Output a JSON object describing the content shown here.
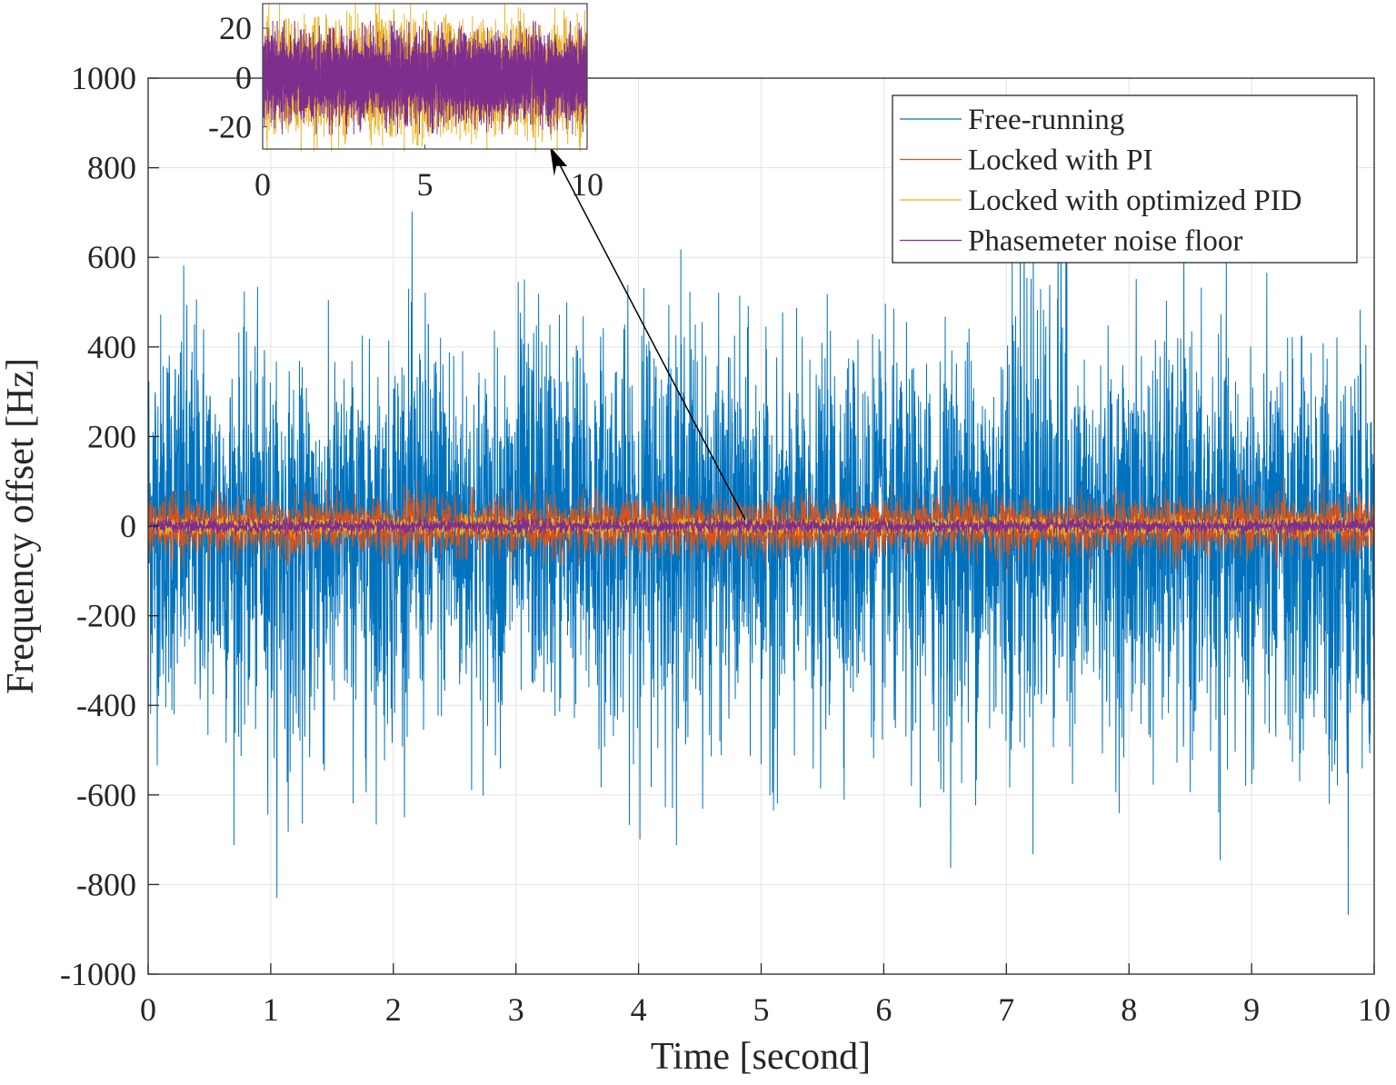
{
  "chart_data": [
    {
      "type": "line",
      "xlabel": "Time [second]",
      "ylabel": "Frequency offset [Hz]",
      "xlim": [
        0,
        10
      ],
      "ylim": [
        -1000,
        1000
      ],
      "xticks": [
        "0",
        "1",
        "2",
        "3",
        "4",
        "5",
        "6",
        "7",
        "8",
        "9",
        "10"
      ],
      "yticks": [
        "1000",
        "800",
        "600",
        "400",
        "200",
        "0",
        "-200",
        "-400",
        "-600",
        "-800",
        "-1000"
      ],
      "grid": true,
      "legend_position": "top-right",
      "envelope_bin_width_s": 0.5,
      "series": [
        {
          "name": "Free-running",
          "color": "#0072BD",
          "envelope_max": [
            745,
            616,
            505,
            556,
            712,
            586,
            746,
            657,
            758,
            606,
            525,
            633,
            556,
            667,
            992,
            545,
            647,
            606,
            566,
            600
          ],
          "envelope_min": [
            -651,
            -712,
            -830,
            -748,
            -650,
            -661,
            -610,
            -712,
            -712,
            -688,
            -770,
            -650,
            -777,
            -763,
            -732,
            -681,
            -752,
            -803,
            -813,
            -904
          ]
        },
        {
          "name": "Locked with PI",
          "color": "#D95319",
          "typical_amplitude": 70,
          "peak_amplitude": 120
        },
        {
          "name": "Locked with optimized PID",
          "color": "#EDB120",
          "typical_amplitude": 22,
          "peak_amplitude": 30
        },
        {
          "name": "Phasemeter noise floor",
          "color": "#7E2F8E",
          "typical_amplitude": 18,
          "peak_amplitude": 23
        }
      ],
      "annotation": "arrow from main trace near t=4.85 s to inset"
    },
    {
      "type": "line",
      "inset": true,
      "xlim": [
        0,
        10
      ],
      "ylim": [
        -29,
        30
      ],
      "xticks": [
        "0",
        "5",
        "10"
      ],
      "yticks": [
        "20",
        "0",
        "-20"
      ],
      "series": [
        {
          "name": "Locked with optimized PID",
          "color": "#EDB120",
          "typical_amplitude": 22,
          "peak_amplitude": 30
        },
        {
          "name": "Phasemeter noise floor",
          "color": "#7E2F8E",
          "typical_amplitude": 18,
          "peak_amplitude": 23
        }
      ]
    }
  ]
}
